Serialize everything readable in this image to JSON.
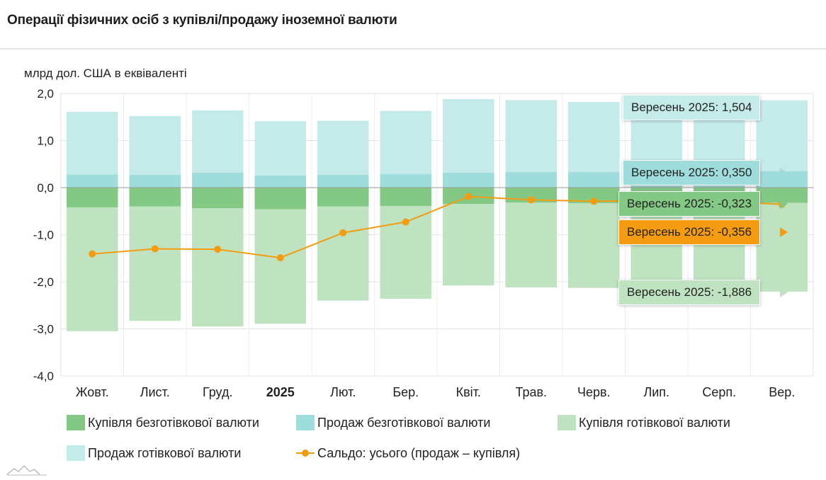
{
  "title": "Операції фізичних осіб з купівлі/продажу іноземної валюти",
  "chart_data": {
    "type": "bar",
    "stacked": true,
    "ylabel": "млрд дол. США в еквіваленті",
    "ylim": [
      -4.0,
      2.0
    ],
    "yticks": [
      2.0,
      1.0,
      0.0,
      -1.0,
      -2.0,
      -3.0,
      -4.0
    ],
    "ytick_labels": [
      "2,0",
      "1,0",
      "0,0",
      "-1,0",
      "-2,0",
      "-3,0",
      "-4,0"
    ],
    "grid": true,
    "categories": [
      "Жовт.",
      "Лист.",
      "Груд.",
      "2025",
      "Лют.",
      "Бер.",
      "Квіт.",
      "Трав.",
      "Черв.",
      "Лип.",
      "Серп.",
      "Вер."
    ],
    "bold_categories": [
      "2025"
    ],
    "series": [
      {
        "name": "Купівля безготівкової валюти",
        "type": "bar",
        "color": "#83c985",
        "values": [
          -0.42,
          -0.4,
          -0.44,
          -0.46,
          -0.4,
          -0.39,
          -0.35,
          -0.32,
          -0.33,
          -0.32,
          -0.33,
          -0.323
        ]
      },
      {
        "name": "Продаж безготівкової валюти",
        "type": "bar",
        "color": "#9fdcdc",
        "values": [
          0.28,
          0.27,
          0.32,
          0.26,
          0.27,
          0.29,
          0.32,
          0.33,
          0.33,
          0.34,
          0.34,
          0.35
        ]
      },
      {
        "name": "Купівля готівкової валюти",
        "type": "bar",
        "color": "#bfe3c0",
        "values": [
          -2.63,
          -2.43,
          -2.51,
          -2.43,
          -2.0,
          -1.97,
          -1.73,
          -1.8,
          -1.8,
          -1.8,
          -1.86,
          -1.886
        ]
      },
      {
        "name": "Продаж готівкової валюти",
        "type": "bar",
        "color": "#c4eaea",
        "values": [
          1.33,
          1.25,
          1.32,
          1.15,
          1.15,
          1.34,
          1.56,
          1.53,
          1.49,
          1.5,
          1.5,
          1.504
        ]
      },
      {
        "name": "Сальдо: усього (продаж – купівля)",
        "type": "line",
        "color": "#f39c12",
        "values": [
          -1.41,
          -1.3,
          -1.31,
          -1.49,
          -0.96,
          -0.73,
          -0.19,
          -0.26,
          -0.29,
          -0.28,
          -0.29,
          -0.356
        ]
      }
    ],
    "legend": "bottom"
  },
  "tooltips": [
    {
      "text": "Вересень 2025: 1,504",
      "bg": "#c4eaea"
    },
    {
      "text": "Вересень 2025: 0,350",
      "bg": "#9fdcdc"
    },
    {
      "text": "Вересень 2025: -0,323",
      "bg": "#83c985"
    },
    {
      "text": "Вересень 2025: -0,356",
      "bg": "#f39c12"
    },
    {
      "text": "Вересень 2025: -1,886",
      "bg": "#bfe3c0"
    }
  ]
}
